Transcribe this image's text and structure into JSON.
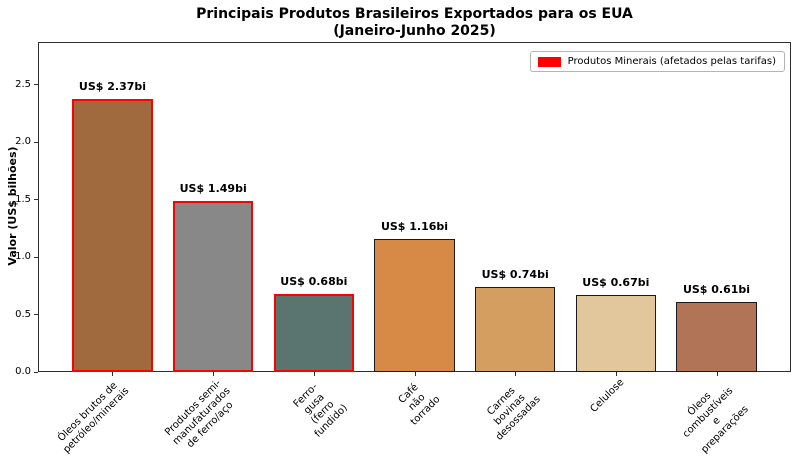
{
  "chart_data": {
    "type": "bar",
    "title": "Principais Produtos Brasileiros Exportados para os EUA",
    "subtitle": "(Janeiro-Junho 2025)",
    "ylabel": "Valor (US$ bilhões)",
    "categories": [
      "Óleos brutos de\npetróleo/minerais",
      "Produtos semi-\nmanufaturados\nde ferro/aço",
      "Ferro-gusa\n(ferro fundido)",
      "Café não\ntorrado",
      "Carnes bovinas\ndesossadas",
      "Celulose",
      "Óleos combustíveis\ne preparações"
    ],
    "values": [
      2.37,
      1.49,
      0.68,
      1.16,
      0.74,
      0.67,
      0.61
    ],
    "value_labels": [
      "US$ 2.37bi",
      "US$ 1.49bi",
      "US$ 0.68bi",
      "US$ 1.16bi",
      "US$ 0.74bi",
      "US$ 0.67bi",
      "US$ 0.61bi"
    ],
    "bar_colors": [
      "#A06A3E",
      "#888888",
      "#5A746F",
      "#D78A45",
      "#D49E60",
      "#E3C79C",
      "#B17456"
    ],
    "edge_colors": [
      "#FF0000",
      "#FF0000",
      "#FF0000",
      "#1a1a1a",
      "#1a1a1a",
      "#1a1a1a",
      "#1a1a1a"
    ],
    "edge_widths": [
      2,
      2,
      2,
      1,
      1,
      1,
      1
    ],
    "tariff_affected": [
      true,
      true,
      true,
      false,
      false,
      false,
      false
    ],
    "yticks": [
      "0.0",
      "0.5",
      "1.0",
      "1.5",
      "2.0",
      "2.5"
    ],
    "ytick_values": [
      0.0,
      0.5,
      1.0,
      1.5,
      2.0,
      2.5
    ],
    "ylim": [
      0,
      2.87
    ],
    "xlim": [
      -0.74,
      6.74
    ],
    "bar_width": 0.8,
    "grid": false,
    "legend": {
      "label": "Produtos Minerais (afetados pelas tarifas)",
      "color": "#FF0000",
      "position": "upper right"
    }
  }
}
